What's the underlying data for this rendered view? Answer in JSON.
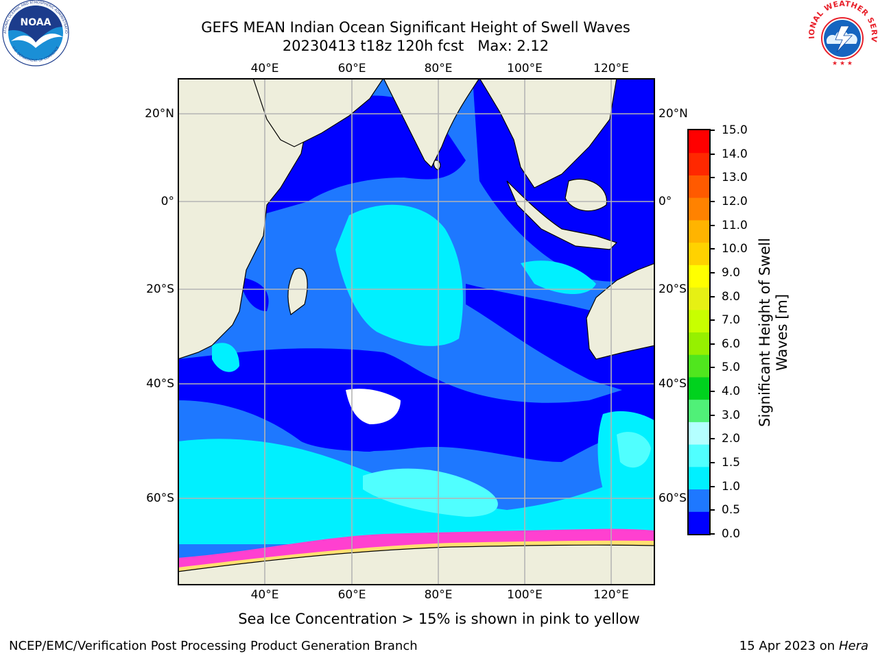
{
  "header": {
    "title_line1": "GEFS MEAN Indian Ocean Significant Height of Swell Waves",
    "title_line2": "20230413 t18z 120h fcst   Max: 2.12"
  },
  "logos": {
    "left": {
      "name": "NOAA",
      "ring_text": "NATIONAL OCEANIC AND ATMOSPHERIC ADMINISTRATION",
      "bottom_text": "U.S. DEPARTMENT OF COMMERCE",
      "colors": {
        "ring": "#ffffff",
        "top": "#1c3c8c",
        "bottom": "#1a8fd6"
      }
    },
    "right": {
      "ring_text": "NATIONAL WEATHER SERVICE",
      "colors": {
        "text": "#e8202a",
        "fill": "#1565c0",
        "stars": "#1565c0"
      }
    }
  },
  "map": {
    "lon_labels": [
      "40°E",
      "60°E",
      "80°E",
      "100°E",
      "120°E"
    ],
    "lat_labels": [
      "20°N",
      "0°",
      "20°S",
      "40°S",
      "60°S"
    ],
    "colors": {
      "land": "#eeeedc",
      "coast": "#000000",
      "grid": "#b4b4b4"
    }
  },
  "colorbar": {
    "label_line1": "Significant Height of Swell",
    "label_line2": "Waves [m]",
    "tick_labels": [
      "0.0",
      "0.5",
      "1.0",
      "1.5",
      "2.0",
      "3.0",
      "4.0",
      "5.0",
      "6.0",
      "7.0",
      "8.0",
      "9.0",
      "10.0",
      "11.0",
      "12.0",
      "13.0",
      "14.0",
      "15.0"
    ],
    "colors": [
      "#0000ff",
      "#1e78ff",
      "#00f0ff",
      "#50ffff",
      "#b4ffff",
      "#50f078",
      "#00d21e",
      "#50e61e",
      "#96f000",
      "#c8ff00",
      "#e6f014",
      "#ffff00",
      "#ffd200",
      "#ffb400",
      "#ff8200",
      "#ff5a00",
      "#ff2800",
      "#ff0000"
    ]
  },
  "note": "Sea Ice Concentration > 15% is shown in pink to yellow",
  "footer": {
    "left": "NCEP/EMC/Verification Post Processing Product Generation Branch",
    "right_prefix": "15 Apr 2023 on ",
    "right_italic": "Hera"
  }
}
